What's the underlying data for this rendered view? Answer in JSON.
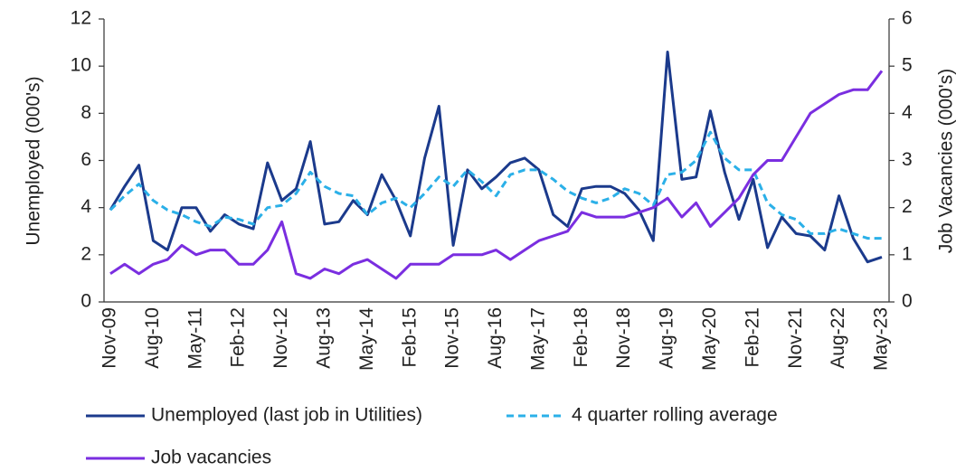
{
  "chart_data": {
    "type": "line",
    "y_label": "Unemployed (000's)",
    "y2_label": "Job Vacancies (000's)",
    "categories": [
      "Nov-09",
      null,
      null,
      "Aug-10",
      null,
      null,
      "May-11",
      null,
      null,
      "Feb-12",
      null,
      null,
      "Nov-12",
      null,
      null,
      "Aug-13",
      null,
      null,
      "May-14",
      null,
      null,
      "Feb-15",
      null,
      null,
      "Nov-15",
      null,
      null,
      "Aug-16",
      null,
      null,
      "May-17",
      null,
      null,
      "Feb-18",
      null,
      null,
      "Nov-18",
      null,
      null,
      "Aug-19",
      null,
      null,
      "May-20",
      null,
      null,
      "Feb-21",
      null,
      null,
      "Nov-21",
      null,
      null,
      "Aug-22",
      null,
      null,
      "May-23"
    ],
    "ylim": [
      0,
      12
    ],
    "yticks": [
      0,
      2,
      4,
      6,
      8,
      10,
      12
    ],
    "y2lim": [
      0,
      6
    ],
    "y2ticks": [
      0,
      1,
      2,
      3,
      4,
      5,
      6
    ],
    "series": [
      {
        "name": "Unemployed (last job in Utilities)",
        "color": "#1b3a8c",
        "dashed": false,
        "axis": "y",
        "values": [
          3.9,
          4.9,
          5.8,
          2.6,
          2.2,
          4.0,
          4.0,
          3.0,
          3.7,
          3.3,
          3.1,
          5.9,
          4.3,
          4.8,
          6.8,
          3.3,
          3.4,
          4.3,
          3.7,
          5.4,
          4.3,
          2.8,
          6.1,
          8.3,
          2.4,
          5.6,
          4.8,
          5.3,
          5.9,
          6.1,
          5.6,
          3.7,
          3.2,
          4.8,
          4.9,
          4.9,
          4.6,
          3.9,
          2.6,
          10.6,
          5.2,
          5.3,
          8.1,
          5.5,
          3.5,
          5.2,
          2.3,
          3.6,
          2.9,
          2.8,
          2.2,
          4.5,
          2.7,
          1.7,
          1.9
        ]
      },
      {
        "name": "4 quarter rolling average",
        "color": "#2bb0e8",
        "dashed": true,
        "axis": "y",
        "values": [
          3.9,
          4.5,
          5.0,
          4.3,
          3.9,
          3.7,
          3.4,
          3.2,
          3.6,
          3.5,
          3.3,
          4.0,
          4.1,
          4.6,
          5.5,
          4.9,
          4.6,
          4.5,
          3.7,
          4.2,
          4.4,
          4.0,
          4.6,
          5.3,
          4.9,
          5.6,
          5.1,
          4.5,
          5.4,
          5.6,
          5.6,
          5.2,
          4.7,
          4.4,
          4.2,
          4.4,
          4.8,
          4.6,
          4.1,
          5.4,
          5.5,
          6.0,
          7.2,
          6.1,
          5.6,
          5.6,
          4.2,
          3.7,
          3.5,
          2.9,
          2.9,
          3.1,
          2.9,
          2.7,
          2.7
        ]
      },
      {
        "name": "Job vacancies",
        "color": "#7a2ee0",
        "dashed": false,
        "axis": "y2",
        "values": [
          0.6,
          0.8,
          0.6,
          0.8,
          0.9,
          1.2,
          1.0,
          1.1,
          1.1,
          0.8,
          0.8,
          1.1,
          1.7,
          0.6,
          0.5,
          0.7,
          0.6,
          0.8,
          0.9,
          0.7,
          0.5,
          0.8,
          0.8,
          0.8,
          1.0,
          1.0,
          1.0,
          1.1,
          0.9,
          1.1,
          1.3,
          1.4,
          1.5,
          1.9,
          1.8,
          1.8,
          1.8,
          1.9,
          2.0,
          2.2,
          1.8,
          2.1,
          1.6,
          1.9,
          2.2,
          2.7,
          3.0,
          3.0,
          3.5,
          4.0,
          4.2,
          4.4,
          4.5,
          4.5,
          4.9
        ]
      }
    ]
  }
}
